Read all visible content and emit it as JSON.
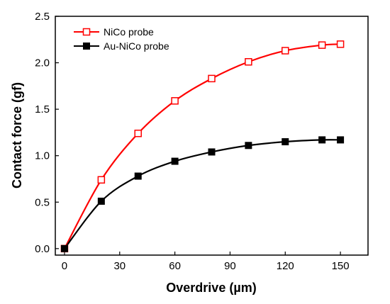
{
  "chart_data": {
    "type": "line",
    "title": "",
    "xlabel": "Overdrive (µm)",
    "ylabel": "Contact force (gf)",
    "xlim": [
      -5,
      165
    ],
    "ylim": [
      -0.07,
      2.5
    ],
    "x_ticks": [
      "0",
      "30",
      "60",
      "90",
      "120",
      "150"
    ],
    "y_ticks": [
      "0.0",
      "0.5",
      "1.0",
      "1.5",
      "2.0",
      "2.5"
    ],
    "grid": false,
    "legend_position": "top-left",
    "series": [
      {
        "name": "NiCo probe",
        "color": "#ff0000",
        "marker": "open-square",
        "x": [
          0,
          20,
          40,
          60,
          80,
          100,
          120,
          140,
          150
        ],
        "y": [
          0.0,
          0.74,
          1.24,
          1.59,
          1.83,
          2.01,
          2.13,
          2.19,
          2.2
        ]
      },
      {
        "name": "Au-NiCo probe",
        "color": "#000000",
        "marker": "filled-square",
        "x": [
          0,
          20,
          40,
          60,
          80,
          100,
          120,
          140,
          150
        ],
        "y": [
          0.0,
          0.51,
          0.78,
          0.94,
          1.04,
          1.11,
          1.15,
          1.17,
          1.17
        ]
      }
    ]
  }
}
